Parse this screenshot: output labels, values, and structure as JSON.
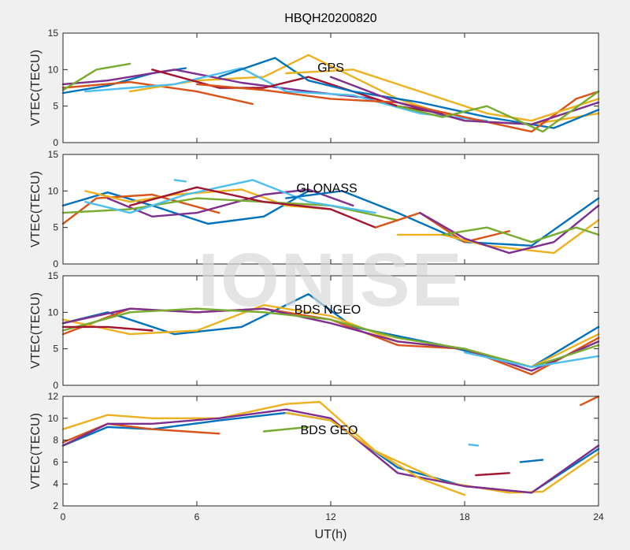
{
  "chart_data": {
    "type": "line",
    "title": "HBQH20200820",
    "xlabel": "UT(h)",
    "watermark": "IONISE",
    "x_ticks": [
      0,
      6,
      12,
      18,
      24
    ],
    "xlim": [
      0,
      24
    ],
    "colors": [
      "#0072BD",
      "#D95319",
      "#EDB120",
      "#7E2F8E",
      "#77AC30",
      "#4DBEEE",
      "#A2142F"
    ],
    "panels": [
      {
        "label": "GPS",
        "ylabel": "VTEC(TECU)",
        "ylim": [
          0,
          15
        ],
        "y_ticks": [
          0,
          5,
          10,
          15
        ],
        "series": [
          {
            "x": [
              0,
              2,
              4,
              5.5
            ],
            "y": [
              6.8,
              7.8,
              9.5,
              10.2
            ]
          },
          {
            "x": [
              0,
              3,
              6,
              8.5
            ],
            "y": [
              7.5,
              8.3,
              7.0,
              5.3
            ]
          },
          {
            "x": [
              3,
              6,
              9,
              11,
              13,
              15,
              18,
              21,
              24
            ],
            "y": [
              7.0,
              8.5,
              9.0,
              12.0,
              9.0,
              6.0,
              3.0,
              2.5,
              4.0
            ]
          },
          {
            "x": [
              0,
              2,
              5,
              8,
              11,
              14
            ],
            "y": [
              8.0,
              8.5,
              10.0,
              8.2,
              7.0,
              6.0
            ]
          },
          {
            "x": [
              0,
              1.5,
              3
            ],
            "y": [
              7.2,
              10.0,
              10.8
            ]
          },
          {
            "x": [
              1,
              3,
              5,
              8,
              10,
              13,
              16,
              19
            ],
            "y": [
              7.0,
              7.5,
              8.0,
              10.2,
              7.0,
              6.5,
              4.0,
              3.0
            ]
          },
          {
            "x": [
              4,
              7,
              9,
              11,
              13,
              15,
              17
            ],
            "y": [
              10.0,
              7.5,
              7.5,
              9.0,
              7.0,
              5.0,
              4.0
            ]
          },
          {
            "x": [
              7,
              9.5,
              11,
              13,
              16,
              19,
              22,
              24
            ],
            "y": [
              9.0,
              11.6,
              8.5,
              7.0,
              5.5,
              3.5,
              2.0,
              4.5
            ]
          },
          {
            "x": [
              6,
              9,
              12,
              15,
              18,
              21,
              23,
              24
            ],
            "y": [
              8.0,
              7.2,
              6.0,
              5.5,
              3.5,
              1.5,
              6.0,
              7.0
            ]
          },
          {
            "x": [
              10,
              13,
              16,
              19,
              21,
              24
            ],
            "y": [
              9.5,
              10.0,
              7.0,
              4.0,
              3.0,
              6.0
            ]
          },
          {
            "x": [
              12,
              15,
              18,
              21,
              24
            ],
            "y": [
              9.0,
              5.5,
              3.0,
              2.5,
              5.5
            ]
          },
          {
            "x": [
              15,
              17,
              19,
              21.5,
              24
            ],
            "y": [
              5.0,
              3.5,
              5.0,
              1.5,
              7.0
            ]
          }
        ]
      },
      {
        "label": "GLONASS",
        "ylabel": "VTEC(TECU)",
        "ylim": [
          0,
          15
        ],
        "y_ticks": [
          0,
          5,
          10,
          15
        ],
        "series": [
          {
            "x": [
              0,
              2,
              4,
              6.5,
              9,
              11
            ],
            "y": [
              8.0,
              9.8,
              8.0,
              5.5,
              6.5,
              10.0
            ]
          },
          {
            "x": [
              0,
              1.5,
              4,
              7
            ],
            "y": [
              5.5,
              9.0,
              9.5,
              7.0
            ]
          },
          {
            "x": [
              1,
              3,
              5,
              8,
              10,
              12
            ],
            "y": [
              10.0,
              8.5,
              9.5,
              10.2,
              8.0,
              7.5
            ]
          },
          {
            "x": [
              2,
              4,
              6,
              9,
              11,
              13
            ],
            "y": [
              9.0,
              6.5,
              7.0,
              9.5,
              10.2,
              8.0
            ]
          },
          {
            "x": [
              0,
              3,
              6,
              9,
              12,
              15
            ],
            "y": [
              7.0,
              7.5,
              9.0,
              8.5,
              8.0,
              6.0
            ]
          },
          {
            "x": [
              1,
              3,
              5.5,
              8.5,
              11,
              14
            ],
            "y": [
              8.5,
              7.0,
              9.5,
              11.5,
              8.5,
              7.0
            ]
          },
          {
            "x": [
              3,
              6,
              9,
              12,
              14
            ],
            "y": [
              8.0,
              10.5,
              8.5,
              7.5,
              5.0
            ]
          },
          {
            "x": [
              10,
              12.5,
              15,
              18,
              21,
              24
            ],
            "y": [
              9.0,
              10.0,
              7.0,
              3.0,
              2.5,
              9.0
            ]
          },
          {
            "x": [
              14,
              16,
              18,
              20
            ],
            "y": [
              5.0,
              7.0,
              3.0,
              4.5
            ]
          },
          {
            "x": [
              15,
              17,
              19,
              22,
              24
            ],
            "y": [
              4.0,
              4.0,
              2.5,
              1.5,
              6.0
            ]
          },
          {
            "x": [
              16,
              18,
              20,
              22,
              24
            ],
            "y": [
              7.0,
              3.5,
              1.5,
              3.0,
              8.0
            ]
          },
          {
            "x": [
              17,
              19,
              21,
              23,
              24
            ],
            "y": [
              4.0,
              5.0,
              3.0,
              5.0,
              4.0
            ]
          },
          {
            "x": [
              5,
              5.5
            ],
            "y": [
              11.5,
              11.3
            ]
          }
        ]
      },
      {
        "label": "BDS NGEO",
        "ylabel": "VTEC(TECU)",
        "ylim": [
          0,
          15
        ],
        "y_ticks": [
          0,
          5,
          10,
          15
        ],
        "series": [
          {
            "x": [
              0,
              2,
              5,
              8,
              11,
              13,
              17,
              21,
              24
            ],
            "y": [
              8.5,
              10.0,
              7.0,
              8.0,
              12.5,
              8.0,
              5.5,
              2.5,
              8.0
            ]
          },
          {
            "x": [
              0,
              3,
              6,
              9,
              12,
              15,
              18,
              21,
              24
            ],
            "y": [
              7.0,
              10.5,
              10.0,
              10.5,
              9.0,
              5.5,
              5.0,
              1.5,
              6.5
            ]
          },
          {
            "x": [
              0,
              3,
              6,
              9,
              12,
              15,
              18,
              21,
              24
            ],
            "y": [
              9.0,
              7.0,
              7.5,
              11.0,
              9.5,
              6.0,
              5.0,
              2.5,
              7.0
            ]
          },
          {
            "x": [
              0,
              3,
              6,
              9,
              12,
              15,
              18,
              21,
              24
            ],
            "y": [
              8.5,
              10.5,
              10.0,
              10.5,
              8.5,
              6.0,
              5.0,
              2.0,
              6.0
            ]
          },
          {
            "x": [
              0,
              3,
              6,
              9,
              12,
              15,
              18,
              21,
              24
            ],
            "y": [
              7.5,
              10.0,
              10.5,
              10.0,
              9.0,
              6.5,
              5.0,
              2.5,
              5.5
            ]
          },
          {
            "x": [
              18,
              21,
              24
            ],
            "y": [
              4.5,
              2.5,
              4.0
            ]
          },
          {
            "x": [
              0,
              2,
              4
            ],
            "y": [
              8.0,
              8.0,
              7.5
            ]
          }
        ]
      },
      {
        "label": "BDS GEO",
        "ylabel": "VTEC(TECU)",
        "ylim": [
          2,
          12
        ],
        "y_ticks": [
          2,
          4,
          6,
          8,
          10,
          12
        ],
        "series": [
          {
            "x": [
              0,
              2,
              4,
              7,
              10,
              12,
              15,
              18,
              21,
              24
            ],
            "y": [
              7.5,
              9.2,
              9.0,
              9.8,
              10.5,
              9.8,
              5.5,
              3.8,
              3.2,
              7.2
            ]
          },
          {
            "x": [
              0,
              2,
              4,
              7
            ],
            "y": [
              7.8,
              9.5,
              9.0,
              8.6
            ]
          },
          {
            "x": [
              0,
              2,
              4,
              7,
              10,
              11.5,
              14,
              17,
              20,
              21.5,
              24
            ],
            "y": [
              9.0,
              10.3,
              10.0,
              10.0,
              11.3,
              11.5,
              7.0,
              4.2,
              3.2,
              3.3,
              6.8
            ]
          },
          {
            "x": [
              0,
              2,
              4,
              7,
              10,
              12,
              15,
              18,
              21,
              24
            ],
            "y": [
              7.5,
              9.5,
              9.5,
              10.0,
              10.8,
              10.0,
              5.0,
              3.8,
              3.2,
              7.5
            ]
          },
          {
            "x": [
              9,
              11
            ],
            "y": [
              8.8,
              9.2
            ]
          },
          {
            "x": [
              18.2,
              18.6
            ],
            "y": [
              7.6,
              7.5
            ]
          },
          {
            "x": [
              18.5,
              20
            ],
            "y": [
              4.8,
              5.0
            ]
          },
          {
            "x": [
              20.5,
              21.5
            ],
            "y": [
              6.0,
              6.2
            ]
          },
          {
            "x": [
              23.2,
              24
            ],
            "y": [
              11.2,
              12.0
            ]
          },
          {
            "x": [
              10,
              12,
              14,
              16,
              18
            ],
            "y": [
              10.5,
              9.8,
              7.0,
              4.5,
              3.0
            ]
          }
        ]
      }
    ]
  }
}
